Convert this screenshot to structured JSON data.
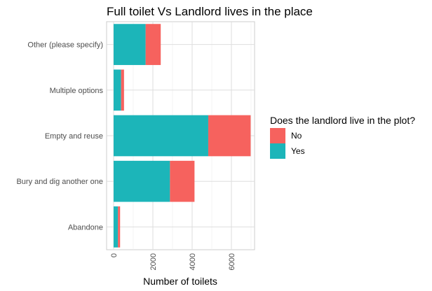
{
  "chart_data": {
    "type": "bar",
    "orientation": "horizontal",
    "stacked": true,
    "title": "Full toilet Vs Landlord lives in the place",
    "xlabel": "Number of toilets",
    "ylabel": "",
    "categories": [
      "Other (please specify)",
      "Multiple options",
      "Empty and reuse",
      "Bury and dig another one",
      "Abandone"
    ],
    "series": [
      {
        "name": "Yes",
        "color": "#1cb5b9",
        "values": [
          1630,
          380,
          4820,
          2870,
          220
        ]
      },
      {
        "name": "No",
        "color": "#f6625e",
        "values": [
          770,
          150,
          2160,
          1250,
          110
        ]
      }
    ],
    "xlim": [
      0,
      7250
    ],
    "xticks": [
      0,
      2000,
      4000,
      6000
    ],
    "xtick_labels": [
      "0",
      "2000",
      "4000",
      "6000"
    ],
    "grid": true,
    "legend": {
      "title": "Does the landlord live in the plot?",
      "position": "right",
      "items": [
        {
          "label": "No",
          "color": "#f6625e"
        },
        {
          "label": "Yes",
          "color": "#1cb5b9"
        }
      ]
    }
  }
}
